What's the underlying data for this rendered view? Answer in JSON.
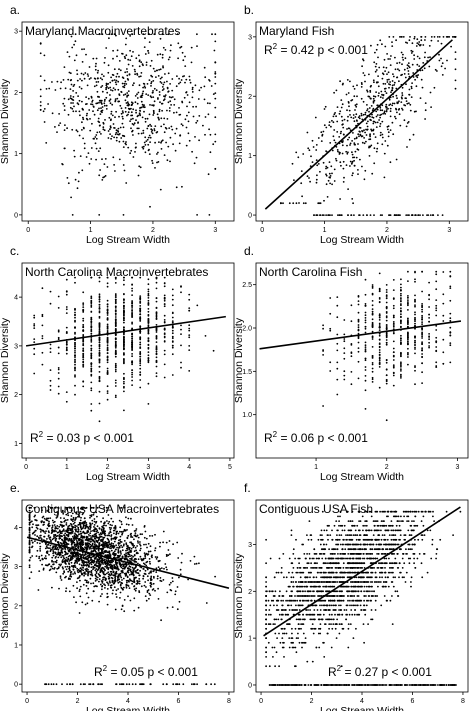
{
  "figure": {
    "background": "#ffffff",
    "ink": "#000000"
  },
  "chart_data": [
    {
      "type": "scatter",
      "letter": "a.",
      "title": "Maryland Macroinvertebrates",
      "xlabel": "Log Stream Width",
      "ylabel": "Shannon Diversity",
      "xlim": [
        -0.1,
        3.3
      ],
      "ylim": [
        -0.1,
        3.15
      ],
      "xticks": [
        "0",
        "1",
        "2",
        "3"
      ],
      "yticks": [
        "0",
        "1",
        "2",
        "3"
      ],
      "grid": false,
      "regression": null,
      "stats": null,
      "point_cloud": {
        "n": 820,
        "x_center": 1.6,
        "x_spread": 0.65,
        "x_range": [
          0.2,
          3.0
        ],
        "y_center": 1.85,
        "y_spread": 0.55,
        "y_range": [
          0.1,
          2.95
        ],
        "zero_count": 5,
        "seed": 11
      }
    },
    {
      "type": "scatter",
      "letter": "b.",
      "title": "Maryland Fish",
      "xlabel": "Log Stream Width",
      "ylabel": "Shannon Diversity",
      "xlim": [
        -0.1,
        3.3
      ],
      "ylim": [
        -0.1,
        3.25
      ],
      "xticks": [
        "0",
        "1",
        "2",
        "3"
      ],
      "yticks": [
        "0",
        "1",
        "2",
        "3"
      ],
      "grid": false,
      "regression": {
        "x": [
          0.05,
          3.05
        ],
        "y": [
          0.1,
          2.95
        ]
      },
      "stats": {
        "r2_value": "0.42",
        "p_text": "p < 0.001",
        "position": "top-left"
      },
      "point_cloud": {
        "n": 650,
        "x_center": 1.75,
        "x_spread": 0.55,
        "x_range": [
          0.3,
          3.1
        ],
        "slope": 0.95,
        "intercept": 0.05,
        "y_noise": 0.45,
        "y_range": [
          0.2,
          3.0
        ],
        "zero_count": 70,
        "zero_x_range": [
          0.8,
          2.9
        ],
        "seed": 23
      }
    },
    {
      "type": "scatter",
      "letter": "c.",
      "title": "North Carolina Macroinvertebrates",
      "xlabel": "Log Stream Width",
      "ylabel": "Shannon Diversity",
      "xlim": [
        -0.1,
        5.1
      ],
      "ylim": [
        0.7,
        4.7
      ],
      "xticks": [
        "0",
        "1",
        "2",
        "3",
        "4",
        "5"
      ],
      "yticks": [
        "1",
        "2",
        "3",
        "4"
      ],
      "grid": false,
      "regression": {
        "x": [
          0.0,
          4.9
        ],
        "y": [
          3.0,
          3.6
        ]
      },
      "stats": {
        "r2_value": "0.03",
        "p_text": "p < 0.001",
        "position": "bottom-left"
      },
      "point_cloud": {
        "n": 900,
        "x_center": 2.2,
        "x_spread": 0.8,
        "x_range": [
          0.1,
          4.6
        ],
        "x_step": 0.2,
        "slope": 0.12,
        "intercept": 3.0,
        "y_noise": 0.55,
        "y_range": [
          0.9,
          4.4
        ],
        "zero_count": 0,
        "seed": 37
      }
    },
    {
      "type": "scatter",
      "letter": "d.",
      "title": "North Carolina Fish",
      "xlabel": "Log Stream Width",
      "ylabel": "Shannon Diversity",
      "xlim": [
        0.15,
        3.15
      ],
      "ylim": [
        0.5,
        2.75
      ],
      "xticks": [
        "1",
        "2",
        "3"
      ],
      "yticks": [
        "1.0",
        "1.5",
        "2.0",
        "2.5"
      ],
      "grid": false,
      "regression": {
        "x": [
          0.2,
          3.05
        ],
        "y": [
          1.76,
          2.08
        ]
      },
      "stats": {
        "r2_value": "0.06",
        "p_text": "p < 0.001",
        "position": "bottom-left"
      },
      "point_cloud": {
        "n": 520,
        "x_center": 2.1,
        "x_spread": 0.4,
        "x_range": [
          1.1,
          2.9
        ],
        "x_step": 0.1,
        "slope": 0.11,
        "intercept": 1.74,
        "y_noise": 0.3,
        "y_range": [
          0.9,
          2.65
        ],
        "zero_count": 0,
        "seed": 53
      }
    },
    {
      "type": "scatter",
      "letter": "e.",
      "title": "Contiguous USA Macroinvertebrates",
      "xlabel": "Log Stream Width",
      "ylabel": "Shannon Diversity",
      "xlim": [
        -0.2,
        8.2
      ],
      "ylim": [
        -0.2,
        4.7
      ],
      "xticks": [
        "0",
        "2",
        "4",
        "6",
        "8"
      ],
      "yticks": [
        "0",
        "1",
        "2",
        "3",
        "4"
      ],
      "grid": false,
      "regression": {
        "x": [
          0.0,
          8.0
        ],
        "y": [
          3.75,
          2.45
        ]
      },
      "stats": {
        "r2_value": "0.05",
        "p_text": "p < 0.001",
        "position": "bottom-right"
      },
      "point_cloud": {
        "n": 2300,
        "x_center": 2.7,
        "x_spread": 1.3,
        "x_range": [
          0.1,
          7.8
        ],
        "slope": -0.16,
        "intercept": 3.8,
        "y_noise": 0.45,
        "y_range": [
          1.0,
          4.5
        ],
        "zero_count": 60,
        "zero_x_range": [
          0.6,
          7.5
        ],
        "seed": 71
      }
    },
    {
      "type": "scatter",
      "letter": "f.",
      "title": "Contiguous USA Fish",
      "xlabel": "Log Stream Width",
      "ylabel": "Shannon Diversity",
      "xlim": [
        -0.2,
        8.2
      ],
      "ylim": [
        -0.15,
        3.95
      ],
      "xticks": [
        "0",
        "2",
        "4",
        "6",
        "8"
      ],
      "yticks": [
        "0",
        "1",
        "2",
        "3"
      ],
      "grid": false,
      "regression": {
        "x": [
          0.1,
          7.9
        ],
        "y": [
          1.05,
          3.8
        ]
      },
      "stats": {
        "r2_value": "0.27",
        "p_text": "p < 0.001",
        "position": "bottom-right"
      },
      "point_cloud": {
        "n": 2000,
        "x_center": 3.3,
        "x_spread": 1.5,
        "x_range": [
          0.2,
          7.9
        ],
        "slope": 0.3,
        "intercept": 1.4,
        "y_noise": 0.55,
        "y_range": [
          0.4,
          3.7
        ],
        "y_step": 0.1,
        "zero_count": 300,
        "zero_x_range": [
          0.3,
          7.8
        ],
        "seed": 89
      }
    }
  ]
}
